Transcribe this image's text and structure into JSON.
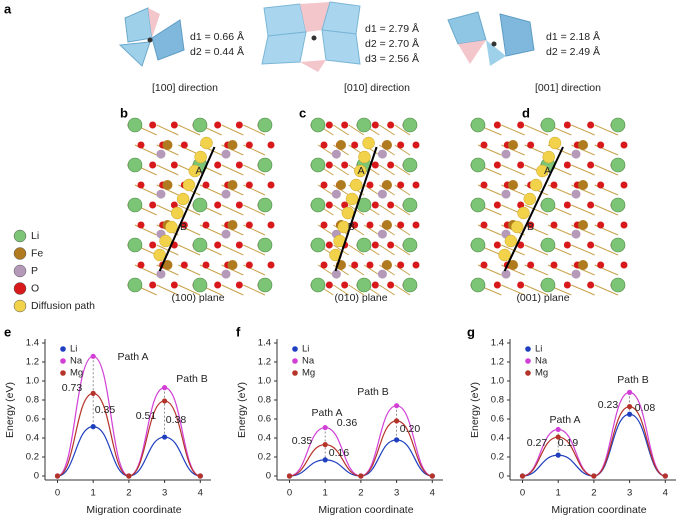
{
  "panel_labels": [
    "a",
    "b",
    "c",
    "d",
    "e",
    "f",
    "g"
  ],
  "panel_a": [
    {
      "distances": [
        "d1 = 0.66 Å",
        "d2 = 0.44 Å"
      ],
      "caption": "[100] direction"
    },
    {
      "distances": [
        "d1 = 2.79 Å",
        "d2 = 2.70 Å",
        "d3 = 2.56 Å"
      ],
      "caption": "[010] direction"
    },
    {
      "distances": [
        "d1 = 2.18 Å",
        "d2 = 2.49 Å"
      ],
      "caption": "[001] direction"
    }
  ],
  "structures": [
    {
      "caption": "(100) plane",
      "points": [
        "A",
        "B"
      ]
    },
    {
      "caption": "(010) plane",
      "points": [
        "A",
        "B"
      ]
    },
    {
      "caption": "(001) plane",
      "points": [
        "A",
        "B"
      ]
    }
  ],
  "legend": [
    {
      "label": "Li",
      "color": "#7cc576"
    },
    {
      "label": "Fe",
      "color": "#b07a1e"
    },
    {
      "label": "P",
      "color": "#b49ab8"
    },
    {
      "label": "O",
      "color": "#d7191c"
    },
    {
      "label": "Diffusion path",
      "color": "#f2d24b"
    }
  ],
  "chart_data": [
    {
      "type": "line",
      "xlabel": "Migration coordinate",
      "ylabel": "Energy (eV)",
      "x": [
        0,
        1,
        2,
        3,
        4
      ],
      "xlim": [
        -0.35,
        4.3
      ],
      "xticks": [
        0,
        1,
        2,
        3,
        4
      ],
      "ylim": [
        0,
        1.4
      ],
      "yticks": [
        0,
        0.2,
        0.4,
        0.6,
        0.8,
        {
          "value": 1,
          "label": "1.0"
        },
        1.2,
        1.4
      ],
      "legend": "upper left",
      "series": [
        {
          "name": "Li",
          "color": "#1f3fbf",
          "values": [
            0,
            0.52,
            0,
            0.41,
            0
          ]
        },
        {
          "name": "Na",
          "color": "#d23fd6",
          "values": [
            0,
            1.26,
            0,
            0.93,
            0
          ]
        },
        {
          "name": "Mg",
          "color": "#b5342a",
          "values": [
            0,
            0.87,
            0,
            0.79,
            0
          ]
        }
      ],
      "annotations": [
        "Path A",
        "Path B",
        "0.73",
        "0.35",
        "0.51",
        "0.38"
      ]
    },
    {
      "type": "line",
      "xlabel": "Migration coordinate",
      "ylabel": "Energy (eV)",
      "x": [
        0,
        1,
        2,
        3,
        4
      ],
      "xlim": [
        -0.35,
        4.3
      ],
      "xticks": [
        0,
        1,
        2,
        3,
        4
      ],
      "ylim": [
        0,
        1.4
      ],
      "yticks": [
        0,
        0.2,
        0.4,
        0.6,
        0.8,
        {
          "value": 1,
          "label": "1.0"
        },
        1.2,
        1.4
      ],
      "legend": "upper left",
      "series": [
        {
          "name": "Li",
          "color": "#1f3fbf",
          "values": [
            0,
            0.17,
            0,
            0.38,
            0
          ]
        },
        {
          "name": "Na",
          "color": "#d23fd6",
          "values": [
            0,
            0.51,
            0,
            0.74,
            0
          ]
        },
        {
          "name": "Mg",
          "color": "#b5342a",
          "values": [
            0,
            0.33,
            0,
            0.58,
            0
          ]
        }
      ],
      "annotations": [
        "Path A",
        "Path B",
        "0.35",
        "0.16",
        "0.36",
        "0.20"
      ]
    },
    {
      "type": "line",
      "xlabel": "Migration coordinate",
      "ylabel": "Energy (eV)",
      "x": [
        0,
        1,
        2,
        3,
        4
      ],
      "xlim": [
        -0.35,
        4.3
      ],
      "xticks": [
        0,
        1,
        2,
        3,
        4
      ],
      "ylim": [
        0,
        1.4
      ],
      "yticks": [
        0,
        0.2,
        0.4,
        0.6,
        0.8,
        {
          "value": 1,
          "label": "1.0"
        },
        1.2,
        1.4
      ],
      "legend": "upper left",
      "series": [
        {
          "name": "Li",
          "color": "#1f3fbf",
          "values": [
            0,
            0.22,
            0,
            0.65,
            0
          ]
        },
        {
          "name": "Na",
          "color": "#d23fd6",
          "values": [
            0,
            0.49,
            0,
            0.88,
            0
          ]
        },
        {
          "name": "Mg",
          "color": "#b5342a",
          "values": [
            0,
            0.41,
            0,
            0.73,
            0
          ]
        }
      ],
      "annotations": [
        "Path A",
        "Path B",
        "0.27",
        "0.19",
        "0.23",
        "0.08"
      ]
    }
  ]
}
